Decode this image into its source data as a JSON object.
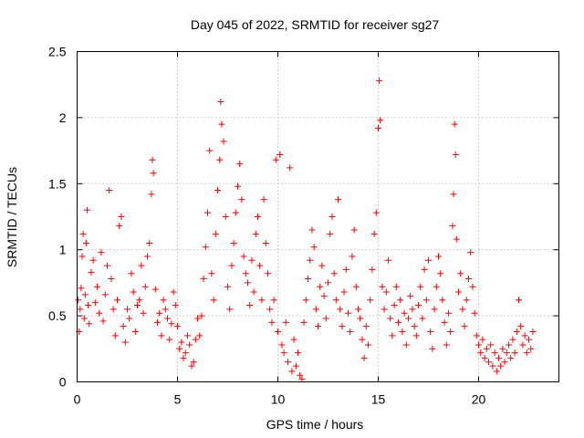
{
  "chart_data": {
    "type": "scatter",
    "title": "Day 045 of 2022, SRMTID for receiver sg27",
    "xlabel": "GPS time / hours",
    "ylabel": "SRMTID / TECUs",
    "xlim": [
      0,
      24
    ],
    "ylim": [
      0,
      2.5
    ],
    "xticks": [
      0,
      5,
      10,
      15,
      20
    ],
    "xtick_labels": [
      "0",
      "5",
      "10",
      "15",
      "20"
    ],
    "yticks": [
      0,
      0.5,
      1,
      1.5,
      2,
      2.5
    ],
    "ytick_labels": [
      "0",
      "0.5",
      "1",
      "1.5",
      "2",
      "2.5"
    ],
    "grid": true,
    "marker": "+",
    "series": [
      {
        "name": "SRMTID",
        "color": "#ff0000",
        "points": [
          [
            0.05,
            0.62
          ],
          [
            0.1,
            0.38
          ],
          [
            0.15,
            0.55
          ],
          [
            0.2,
            0.71
          ],
          [
            0.25,
            0.95
          ],
          [
            0.3,
            1.12
          ],
          [
            0.35,
            0.48
          ],
          [
            0.4,
            0.66
          ],
          [
            0.45,
            1.05
          ],
          [
            0.5,
            1.3
          ],
          [
            0.55,
            0.58
          ],
          [
            0.6,
            0.44
          ],
          [
            0.7,
            0.83
          ],
          [
            0.8,
            0.92
          ],
          [
            0.9,
            0.6
          ],
          [
            1.0,
            0.72
          ],
          [
            1.1,
            0.52
          ],
          [
            1.2,
            0.98
          ],
          [
            1.3,
            0.46
          ],
          [
            1.4,
            0.66
          ],
          [
            1.5,
            0.88
          ],
          [
            1.6,
            1.45
          ],
          [
            1.7,
            0.78
          ],
          [
            1.8,
            0.55
          ],
          [
            1.9,
            0.35
          ],
          [
            2.0,
            0.62
          ],
          [
            2.1,
            1.18
          ],
          [
            2.2,
            1.25
          ],
          [
            2.3,
            0.42
          ],
          [
            2.4,
            0.3
          ],
          [
            2.5,
            0.55
          ],
          [
            2.6,
            0.48
          ],
          [
            2.7,
            0.82
          ],
          [
            2.8,
            0.68
          ],
          [
            2.9,
            0.38
          ],
          [
            3.0,
            0.58
          ],
          [
            3.1,
            0.62
          ],
          [
            3.2,
            0.88
          ],
          [
            3.3,
            0.52
          ],
          [
            3.4,
            0.72
          ],
          [
            3.5,
            0.95
          ],
          [
            3.6,
            1.05
          ],
          [
            3.7,
            1.42
          ],
          [
            3.75,
            1.68
          ],
          [
            3.8,
            1.58
          ],
          [
            3.9,
            0.7
          ],
          [
            4.0,
            0.45
          ],
          [
            4.1,
            0.52
          ],
          [
            4.2,
            0.35
          ],
          [
            4.3,
            0.62
          ],
          [
            4.4,
            0.55
          ],
          [
            4.5,
            0.48
          ],
          [
            4.6,
            0.32
          ],
          [
            4.7,
            0.44
          ],
          [
            4.8,
            0.68
          ],
          [
            4.9,
            0.58
          ],
          [
            5.0,
            0.42
          ],
          [
            5.1,
            0.25
          ],
          [
            5.2,
            0.3
          ],
          [
            5.3,
            0.18
          ],
          [
            5.4,
            0.22
          ],
          [
            5.5,
            0.35
          ],
          [
            5.6,
            0.28
          ],
          [
            5.7,
            0.12
          ],
          [
            5.8,
            0.15
          ],
          [
            5.9,
            0.32
          ],
          [
            6.0,
            0.48
          ],
          [
            6.1,
            0.35
          ],
          [
            6.2,
            0.5
          ],
          [
            6.3,
            0.78
          ],
          [
            6.4,
            1.02
          ],
          [
            6.5,
            1.28
          ],
          [
            6.6,
            1.75
          ],
          [
            6.7,
            0.82
          ],
          [
            6.8,
            0.62
          ],
          [
            6.9,
            1.12
          ],
          [
            7.0,
            1.45
          ],
          [
            7.1,
            1.68
          ],
          [
            7.15,
            2.12
          ],
          [
            7.2,
            1.95
          ],
          [
            7.3,
            1.82
          ],
          [
            7.4,
            1.25
          ],
          [
            7.5,
            0.72
          ],
          [
            7.6,
            0.55
          ],
          [
            7.7,
            0.88
          ],
          [
            7.8,
            1.05
          ],
          [
            7.9,
            1.28
          ],
          [
            8.0,
            1.48
          ],
          [
            8.1,
            1.65
          ],
          [
            8.2,
            1.38
          ],
          [
            8.3,
            0.95
          ],
          [
            8.4,
            0.82
          ],
          [
            8.5,
            0.75
          ],
          [
            8.6,
            0.58
          ],
          [
            8.7,
            0.92
          ],
          [
            8.8,
            0.68
          ],
          [
            8.9,
            1.12
          ],
          [
            9.0,
            1.25
          ],
          [
            9.1,
            0.88
          ],
          [
            9.2,
            0.62
          ],
          [
            9.3,
            1.38
          ],
          [
            9.4,
            1.05
          ],
          [
            9.5,
            0.82
          ],
          [
            9.6,
            0.55
          ],
          [
            9.7,
            0.45
          ],
          [
            9.8,
            0.62
          ],
          [
            9.9,
            1.68
          ],
          [
            10.0,
            0.38
          ],
          [
            10.1,
            1.72
          ],
          [
            10.2,
            0.28
          ],
          [
            10.3,
            0.22
          ],
          [
            10.4,
            0.45
          ],
          [
            10.5,
            0.15
          ],
          [
            10.6,
            1.62
          ],
          [
            10.7,
            0.08
          ],
          [
            10.8,
            0.32
          ],
          [
            10.9,
            0.12
          ],
          [
            11.0,
            0.22
          ],
          [
            11.1,
            0.05
          ],
          [
            11.2,
            0.02
          ],
          [
            11.3,
            0.45
          ],
          [
            11.4,
            0.62
          ],
          [
            11.5,
            0.78
          ],
          [
            11.6,
            0.92
          ],
          [
            11.7,
            1.15
          ],
          [
            11.8,
            1.02
          ],
          [
            11.9,
            0.55
          ],
          [
            12.0,
            0.42
          ],
          [
            12.1,
            0.72
          ],
          [
            12.2,
            0.88
          ],
          [
            12.3,
            0.65
          ],
          [
            12.4,
            0.48
          ],
          [
            12.5,
            0.75
          ],
          [
            12.6,
            1.12
          ],
          [
            12.7,
            1.25
          ],
          [
            12.8,
            0.82
          ],
          [
            12.9,
            0.62
          ],
          [
            13.0,
            1.38
          ],
          [
            13.1,
            0.55
          ],
          [
            13.2,
            0.42
          ],
          [
            13.3,
            0.68
          ],
          [
            13.4,
            0.85
          ],
          [
            13.5,
            0.52
          ],
          [
            13.6,
            0.38
          ],
          [
            13.7,
            0.95
          ],
          [
            13.8,
            1.15
          ],
          [
            13.9,
            0.72
          ],
          [
            14.0,
            0.55
          ],
          [
            14.1,
            0.48
          ],
          [
            14.2,
            0.32
          ],
          [
            14.3,
            0.18
          ],
          [
            14.4,
            0.42
          ],
          [
            14.5,
            0.28
          ],
          [
            14.6,
            0.62
          ],
          [
            14.7,
            0.85
          ],
          [
            14.8,
            1.12
          ],
          [
            14.9,
            1.28
          ],
          [
            15.0,
            1.92
          ],
          [
            15.05,
            2.28
          ],
          [
            15.1,
            1.98
          ],
          [
            15.2,
            0.72
          ],
          [
            15.3,
            0.55
          ],
          [
            15.4,
            0.68
          ],
          [
            15.5,
            0.92
          ],
          [
            15.6,
            0.48
          ],
          [
            15.7,
            0.35
          ],
          [
            15.8,
            0.58
          ],
          [
            15.9,
            0.72
          ],
          [
            16.0,
            0.45
          ],
          [
            16.1,
            0.62
          ],
          [
            16.2,
            0.38
          ],
          [
            16.3,
            0.52
          ],
          [
            16.4,
            0.28
          ],
          [
            16.5,
            0.48
          ],
          [
            16.6,
            0.65
          ],
          [
            16.7,
            0.55
          ],
          [
            16.8,
            0.42
          ],
          [
            16.9,
            0.35
          ],
          [
            17.0,
            0.58
          ],
          [
            17.1,
            0.72
          ],
          [
            17.2,
            0.48
          ],
          [
            17.3,
            0.85
          ],
          [
            17.4,
            0.62
          ],
          [
            17.5,
            0.92
          ],
          [
            17.6,
            0.38
          ],
          [
            17.7,
            0.25
          ],
          [
            17.8,
            0.55
          ],
          [
            17.9,
            0.72
          ],
          [
            18.0,
            0.95
          ],
          [
            18.1,
            0.82
          ],
          [
            18.2,
            0.62
          ],
          [
            18.3,
            0.45
          ],
          [
            18.4,
            0.28
          ],
          [
            18.5,
            0.52
          ],
          [
            18.6,
            0.38
          ],
          [
            18.7,
            1.18
          ],
          [
            18.75,
            1.42
          ],
          [
            18.8,
            1.95
          ],
          [
            18.85,
            1.72
          ],
          [
            18.9,
            1.08
          ],
          [
            19.0,
            0.68
          ],
          [
            19.1,
            0.82
          ],
          [
            19.2,
            0.55
          ],
          [
            19.3,
            0.42
          ],
          [
            19.4,
            0.62
          ],
          [
            19.5,
            0.78
          ],
          [
            19.6,
            0.98
          ],
          [
            19.7,
            0.72
          ],
          [
            19.8,
            0.52
          ],
          [
            19.9,
            0.35
          ],
          [
            20.0,
            0.28
          ],
          [
            20.1,
            0.22
          ],
          [
            20.2,
            0.32
          ],
          [
            20.3,
            0.18
          ],
          [
            20.4,
            0.25
          ],
          [
            20.5,
            0.15
          ],
          [
            20.6,
            0.28
          ],
          [
            20.7,
            0.12
          ],
          [
            20.8,
            0.22
          ],
          [
            20.9,
            0.08
          ],
          [
            21.0,
            0.18
          ],
          [
            21.1,
            0.12
          ],
          [
            21.2,
            0.25
          ],
          [
            21.3,
            0.15
          ],
          [
            21.4,
            0.22
          ],
          [
            21.5,
            0.28
          ],
          [
            21.6,
            0.18
          ],
          [
            21.7,
            0.32
          ],
          [
            21.8,
            0.22
          ],
          [
            21.9,
            0.38
          ],
          [
            22.0,
            0.62
          ],
          [
            22.1,
            0.42
          ],
          [
            22.2,
            0.28
          ],
          [
            22.3,
            0.35
          ],
          [
            22.4,
            0.22
          ],
          [
            22.5,
            0.32
          ],
          [
            22.6,
            0.25
          ],
          [
            22.7,
            0.38
          ]
        ]
      }
    ]
  }
}
